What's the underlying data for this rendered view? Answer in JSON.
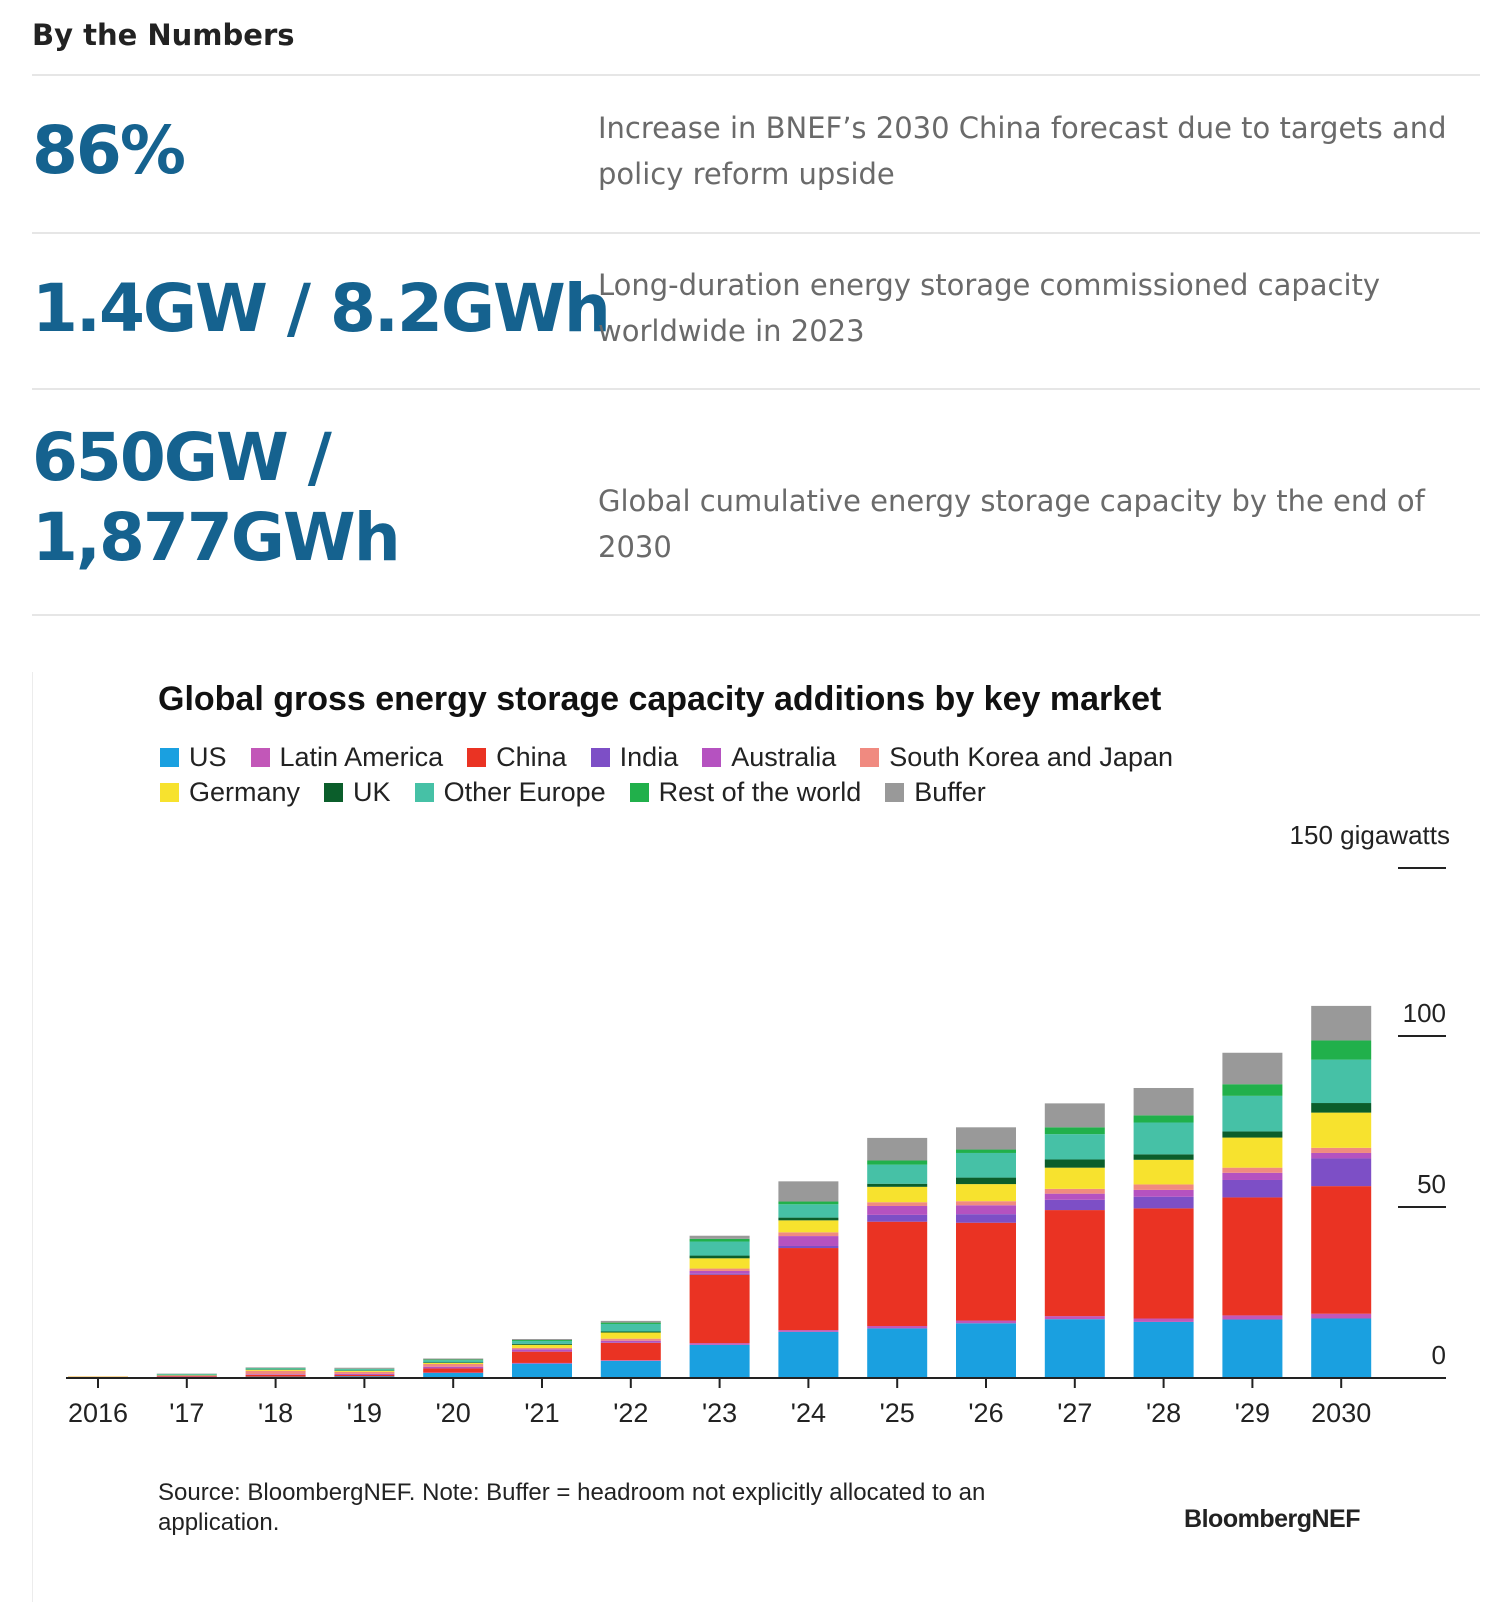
{
  "section": {
    "title": "By the Numbers"
  },
  "stats": [
    {
      "value": "86%",
      "description": "Increase in BNEF’s 2030 China forecast due to targets and policy reform upside"
    },
    {
      "value": "1.4GW / 8.2GWh",
      "description": "Long-duration energy storage commissioned capacity worldwide in 2023"
    },
    {
      "value_line1": "650GW /",
      "value_line2": "1,877GWh",
      "description": "Global cumulative energy storage capacity by the end of 2030"
    }
  ],
  "colors": {
    "stat_value": "#15628f",
    "US": "#1aa0e0",
    "Latin America": "#c257b8",
    "China": "#ea3323",
    "India": "#7d4fc6",
    "Australia": "#b552c0",
    "South Korea and Japan": "#f08a80",
    "Germany": "#f7e22e",
    "UK": "#0b5e2b",
    "Other Europe": "#46c1a6",
    "Rest of the world": "#21b04b",
    "Buffer": "#999999"
  },
  "chart_data": {
    "type": "bar",
    "stacked": true,
    "title": "Global gross energy storage capacity additions by key market",
    "units_label": "150 gigawatts",
    "ylim": [
      0,
      150
    ],
    "yticks": [
      0,
      50,
      100
    ],
    "ytick_labels": [
      "0",
      "50",
      "100"
    ],
    "axis_side": "right",
    "categories": [
      "2016",
      "'17",
      "'18",
      "'19",
      "'20",
      "'21",
      "'22",
      "'23",
      "'24",
      "'25",
      "'26",
      "'27",
      "'28",
      "'29",
      "2030"
    ],
    "legend": [
      "US",
      "Latin America",
      "China",
      "India",
      "Australia",
      "South Korea and Japan",
      "Germany",
      "UK",
      "Other Europe",
      "Rest of the world",
      "Buffer"
    ],
    "series": [
      {
        "name": "US",
        "values": [
          0.2,
          0.3,
          0.4,
          0.5,
          1.5,
          4.2,
          5.0,
          9.7,
          13.5,
          14.5,
          16.0,
          17.2,
          16.4,
          17.1,
          17.4
        ]
      },
      {
        "name": "Latin America",
        "values": [
          0,
          0,
          0,
          0,
          0.1,
          0.2,
          0.2,
          0.5,
          0.5,
          0.7,
          0.8,
          0.9,
          1.0,
          1.2,
          1.4
        ]
      },
      {
        "name": "China",
        "values": [
          0.1,
          0.2,
          0.5,
          0.4,
          1.2,
          3.3,
          5.1,
          20.0,
          24.0,
          30.5,
          28.6,
          31.0,
          32.2,
          34.5,
          37.3
        ]
      },
      {
        "name": "India",
        "values": [
          0,
          0,
          0,
          0,
          0,
          0,
          0.1,
          0.3,
          0.6,
          2.0,
          2.5,
          3.0,
          3.4,
          5.1,
          8.1
        ]
      },
      {
        "name": "Australia",
        "values": [
          0,
          0.1,
          0.2,
          0.3,
          0.5,
          0.7,
          0.5,
          0.8,
          2.9,
          2.6,
          2.6,
          1.8,
          2.0,
          2.1,
          1.6
        ]
      },
      {
        "name": "South Korea and Japan",
        "values": [
          0.1,
          0.1,
          1.0,
          0.6,
          0.8,
          0.4,
          0.6,
          0.7,
          1.1,
          1.1,
          1.2,
          1.4,
          1.6,
          1.5,
          1.5
        ]
      },
      {
        "name": "Germany",
        "values": [
          0.1,
          0.1,
          0.3,
          0.3,
          0.3,
          0.9,
          1.8,
          3.0,
          3.5,
          4.5,
          5.0,
          6.2,
          7.2,
          8.8,
          10.3
        ]
      },
      {
        "name": "UK",
        "values": [
          0,
          0.1,
          0.1,
          0.1,
          0.2,
          0.3,
          0.3,
          0.8,
          0.8,
          0.9,
          1.9,
          2.4,
          1.6,
          1.8,
          2.8
        ]
      },
      {
        "name": "Other Europe",
        "values": [
          0,
          0.2,
          0.3,
          0.4,
          0.6,
          0.8,
          2.2,
          4.1,
          3.9,
          5.6,
          7.2,
          7.4,
          9.3,
          10.4,
          12.7
        ]
      },
      {
        "name": "Rest of the world",
        "values": [
          0,
          0.1,
          0.1,
          0.1,
          0.2,
          0.3,
          0.4,
          0.8,
          0.8,
          1.2,
          1.0,
          2.0,
          2.1,
          3.4,
          5.6
        ]
      },
      {
        "name": "Buffer",
        "values": [
          0,
          0.1,
          0.2,
          0.3,
          0.3,
          0.3,
          0.5,
          0.9,
          5.9,
          6.6,
          6.5,
          7.0,
          8.0,
          9.2,
          10.1
        ]
      }
    ],
    "legend_placement": "top-left",
    "source": "Source: BloombergNEF. Note: Buffer = headroom not explicitly allocated to an application.",
    "brand": "BloombergNEF"
  }
}
